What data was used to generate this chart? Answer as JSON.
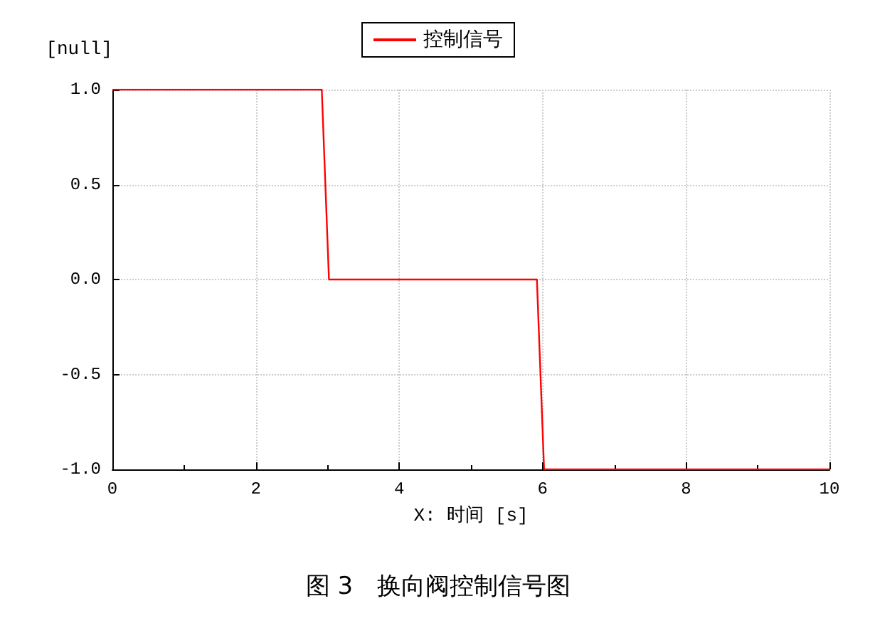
{
  "chart_data": {
    "type": "line",
    "title": "图 3　换向阀控制信号图",
    "xlabel": "X: 时间 [s]",
    "ylabel": "[null]",
    "x": [
      0,
      2.92,
      3.02,
      5.92,
      6.02,
      10
    ],
    "series": [
      {
        "name": "控制信号",
        "color": "#ff0000",
        "values": [
          1,
          1,
          0,
          0,
          -1,
          -1
        ]
      }
    ],
    "xlim": [
      0,
      10
    ],
    "xticks": [
      0,
      2,
      4,
      6,
      8,
      10
    ],
    "ylim": [
      -1,
      1
    ],
    "yticks": [
      {
        "value": -1,
        "label": "-1.0"
      },
      {
        "value": -0.5,
        "label": "-0.5"
      },
      {
        "value": 0,
        "label": "0.0"
      },
      {
        "value": 0.5,
        "label": "0.5"
      },
      {
        "value": 1,
        "label": "1.0"
      }
    ],
    "grid": true,
    "legend": "top",
    "marker": "none",
    "line_style": "solid"
  }
}
